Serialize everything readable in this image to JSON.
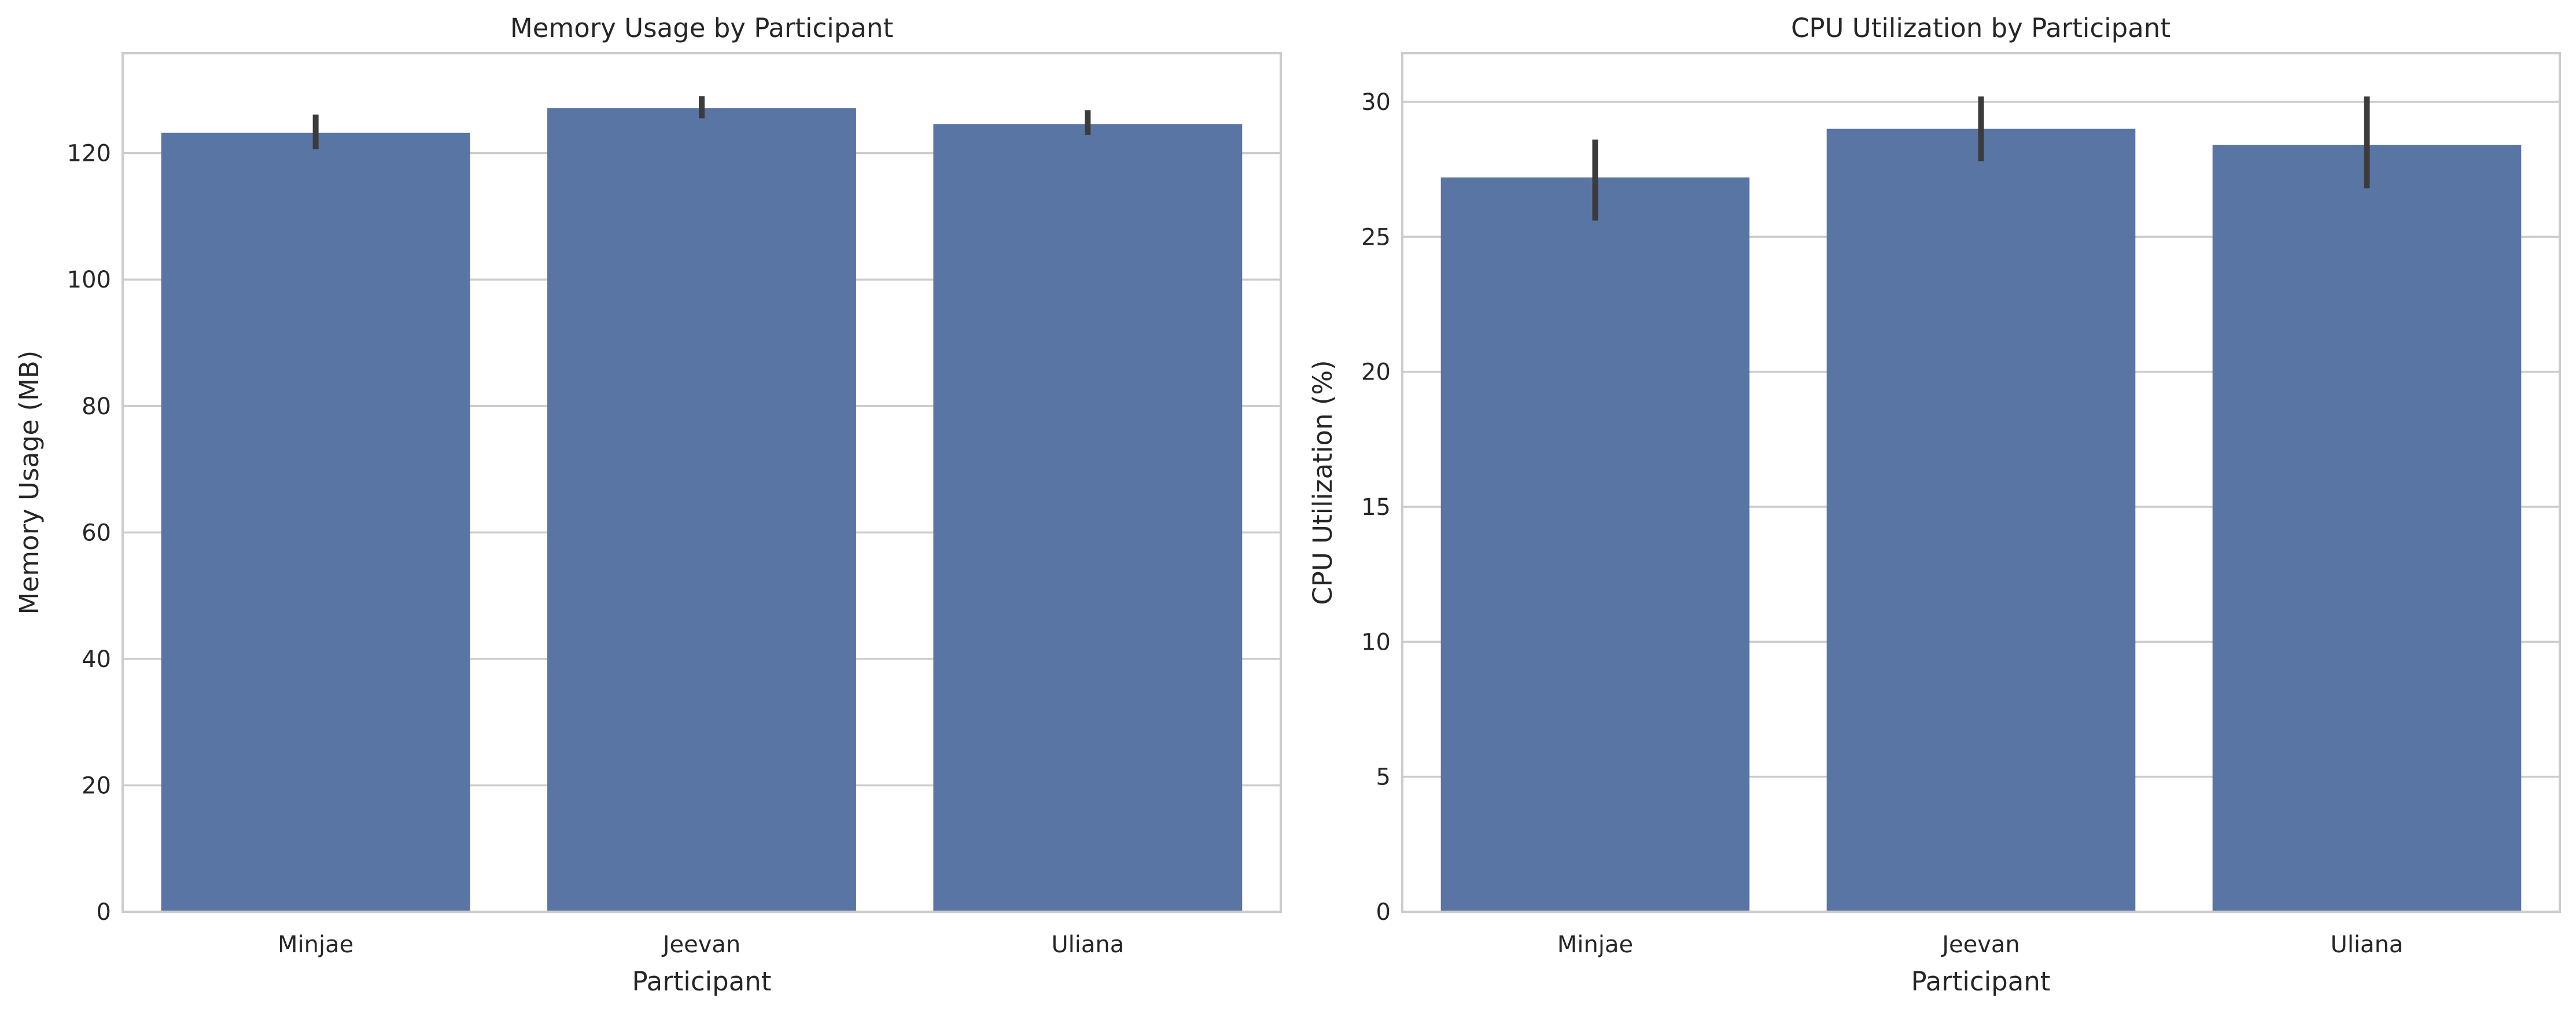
{
  "colors": {
    "bar": "#5975a4",
    "error_bar": "#3b3b3b",
    "grid": "#cccccc",
    "text": "#262626"
  },
  "chart_data": [
    {
      "type": "bar",
      "title": "Memory Usage by Participant",
      "xlabel": "Participant",
      "ylabel": "Memory Usage (MB)",
      "categories": [
        "Minjae",
        "Jeevan",
        "Uliana"
      ],
      "values": [
        123.2,
        127.1,
        124.6
      ],
      "error_low": [
        120.6,
        125.5,
        122.9
      ],
      "error_high": [
        126.1,
        129.0,
        126.8
      ],
      "ylim": [
        0,
        135.8
      ],
      "yticks": [
        0,
        20,
        40,
        60,
        80,
        100,
        120
      ],
      "grid": true
    },
    {
      "type": "bar",
      "title": "CPU Utilization by Participant",
      "xlabel": "Participant",
      "ylabel": "CPU Utilization (%)",
      "categories": [
        "Minjae",
        "Jeevan",
        "Uliana"
      ],
      "values": [
        27.2,
        29.0,
        28.4
      ],
      "error_low": [
        25.6,
        27.8,
        26.8
      ],
      "error_high": [
        28.6,
        30.2,
        30.2
      ],
      "ylim": [
        0,
        31.8
      ],
      "yticks": [
        0,
        5,
        10,
        15,
        20,
        25,
        30
      ],
      "grid": true
    }
  ]
}
